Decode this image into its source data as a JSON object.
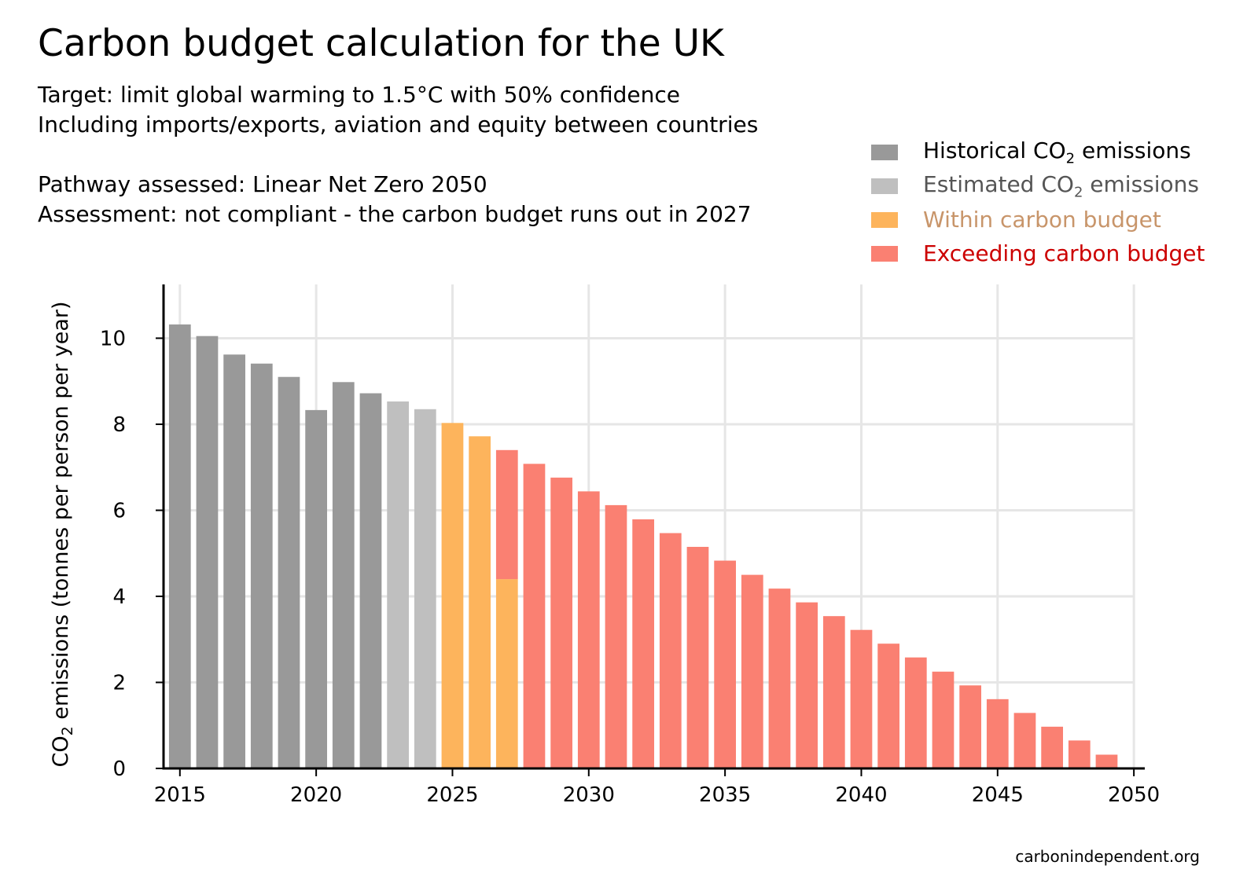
{
  "chart": {
    "title": "Carbon budget calculation for the UK",
    "subtitle_lines": [
      "Target: limit global warming to 1.5°C with 50% confidence",
      "Including imports/exports, aviation and equity between countries",
      "Pathway assessed: Linear Net Zero 2050",
      "Assessment: not compliant - the carbon budget runs out in 2027"
    ],
    "credit": "carbonindependent.org"
  },
  "legend": [
    {
      "label_pre": "Historical CO",
      "label_sub": "2",
      "label_post": " emissions",
      "color": "#999999",
      "text_color": "#000000"
    },
    {
      "label_pre": "Estimated CO",
      "label_sub": "2",
      "label_post": " emissions",
      "color": "#bfbfbf",
      "text_color": "#555555"
    },
    {
      "label_pre": "Within carbon budget",
      "label_sub": "",
      "label_post": "",
      "color": "#fdb45c",
      "text_color": "#c8956a"
    },
    {
      "label_pre": "Exceeding carbon budget",
      "label_sub": "",
      "label_post": "",
      "color": "#fa8072",
      "text_color": "#cc0000"
    }
  ],
  "chart_data": {
    "type": "bar",
    "stacked": true,
    "ylabel_pre": "CO",
    "ylabel_sub": "2",
    "ylabel_post": " emissions (tonnes per person per year)",
    "xlabel": "",
    "xlim": [
      2014.4,
      2050.4
    ],
    "ylim": [
      0,
      11.25
    ],
    "xticks": [
      2015,
      2020,
      2025,
      2030,
      2035,
      2040,
      2045,
      2050
    ],
    "yticks": [
      0,
      2,
      4,
      6,
      8,
      10
    ],
    "grid": true,
    "colors": {
      "historical": "#999999",
      "estimated": "#bfbfbf",
      "within": "#fdb45c",
      "exceeding": "#fa8072"
    },
    "bars": [
      {
        "year": 2015,
        "segments": [
          {
            "category": "historical",
            "value": 10.32
          }
        ]
      },
      {
        "year": 2016,
        "segments": [
          {
            "category": "historical",
            "value": 10.05
          }
        ]
      },
      {
        "year": 2017,
        "segments": [
          {
            "category": "historical",
            "value": 9.62
          }
        ]
      },
      {
        "year": 2018,
        "segments": [
          {
            "category": "historical",
            "value": 9.41
          }
        ]
      },
      {
        "year": 2019,
        "segments": [
          {
            "category": "historical",
            "value": 9.1
          }
        ]
      },
      {
        "year": 2020,
        "segments": [
          {
            "category": "historical",
            "value": 8.33
          }
        ]
      },
      {
        "year": 2021,
        "segments": [
          {
            "category": "historical",
            "value": 8.98
          }
        ]
      },
      {
        "year": 2022,
        "segments": [
          {
            "category": "historical",
            "value": 8.72
          }
        ]
      },
      {
        "year": 2023,
        "segments": [
          {
            "category": "estimated",
            "value": 8.53
          }
        ]
      },
      {
        "year": 2024,
        "segments": [
          {
            "category": "estimated",
            "value": 8.35
          }
        ]
      },
      {
        "year": 2025,
        "segments": [
          {
            "category": "within",
            "value": 8.03
          }
        ]
      },
      {
        "year": 2026,
        "segments": [
          {
            "category": "within",
            "value": 7.72
          }
        ]
      },
      {
        "year": 2027,
        "segments": [
          {
            "category": "within",
            "value": 4.4
          },
          {
            "category": "exceeding",
            "value": 3.0
          }
        ]
      },
      {
        "year": 2028,
        "segments": [
          {
            "category": "exceeding",
            "value": 7.08
          }
        ]
      },
      {
        "year": 2029,
        "segments": [
          {
            "category": "exceeding",
            "value": 6.76
          }
        ]
      },
      {
        "year": 2030,
        "segments": [
          {
            "category": "exceeding",
            "value": 6.44
          }
        ]
      },
      {
        "year": 2031,
        "segments": [
          {
            "category": "exceeding",
            "value": 6.12
          }
        ]
      },
      {
        "year": 2032,
        "segments": [
          {
            "category": "exceeding",
            "value": 5.79
          }
        ]
      },
      {
        "year": 2033,
        "segments": [
          {
            "category": "exceeding",
            "value": 5.47
          }
        ]
      },
      {
        "year": 2034,
        "segments": [
          {
            "category": "exceeding",
            "value": 5.15
          }
        ]
      },
      {
        "year": 2035,
        "segments": [
          {
            "category": "exceeding",
            "value": 4.83
          }
        ]
      },
      {
        "year": 2036,
        "segments": [
          {
            "category": "exceeding",
            "value": 4.5
          }
        ]
      },
      {
        "year": 2037,
        "segments": [
          {
            "category": "exceeding",
            "value": 4.18
          }
        ]
      },
      {
        "year": 2038,
        "segments": [
          {
            "category": "exceeding",
            "value": 3.86
          }
        ]
      },
      {
        "year": 2039,
        "segments": [
          {
            "category": "exceeding",
            "value": 3.54
          }
        ]
      },
      {
        "year": 2040,
        "segments": [
          {
            "category": "exceeding",
            "value": 3.22
          }
        ]
      },
      {
        "year": 2041,
        "segments": [
          {
            "category": "exceeding",
            "value": 2.9
          }
        ]
      },
      {
        "year": 2042,
        "segments": [
          {
            "category": "exceeding",
            "value": 2.58
          }
        ]
      },
      {
        "year": 2043,
        "segments": [
          {
            "category": "exceeding",
            "value": 2.25
          }
        ]
      },
      {
        "year": 2044,
        "segments": [
          {
            "category": "exceeding",
            "value": 1.93
          }
        ]
      },
      {
        "year": 2045,
        "segments": [
          {
            "category": "exceeding",
            "value": 1.61
          }
        ]
      },
      {
        "year": 2046,
        "segments": [
          {
            "category": "exceeding",
            "value": 1.29
          }
        ]
      },
      {
        "year": 2047,
        "segments": [
          {
            "category": "exceeding",
            "value": 0.97
          }
        ]
      },
      {
        "year": 2048,
        "segments": [
          {
            "category": "exceeding",
            "value": 0.65
          }
        ]
      },
      {
        "year": 2049,
        "segments": [
          {
            "category": "exceeding",
            "value": 0.32
          }
        ]
      },
      {
        "year": 2050,
        "segments": [
          {
            "category": "exceeding",
            "value": 0.0
          }
        ]
      }
    ]
  }
}
